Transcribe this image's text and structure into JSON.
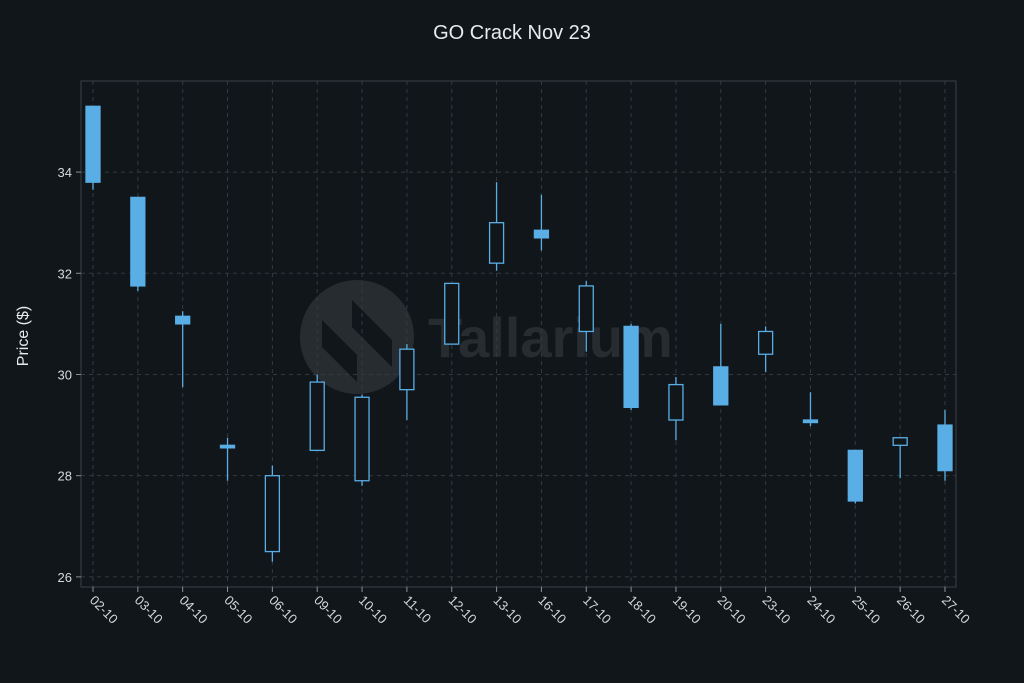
{
  "chart_data": {
    "type": "candlestick",
    "title": "GO Crack Nov 23",
    "xlabel": "",
    "ylabel": "Price ($)",
    "ylim": [
      25.8,
      35.8
    ],
    "yticks": [
      26,
      28,
      30,
      32,
      34
    ],
    "grid": true,
    "colors": {
      "up": "#5aaee6",
      "down": "#5aaee6",
      "background": "#10161a",
      "grid": "#33393e"
    },
    "watermark": "Tallarium",
    "categories": [
      "02-10",
      "03-10",
      "04-10",
      "05-10",
      "06-10",
      "09-10",
      "10-10",
      "11-10",
      "12-10",
      "13-10",
      "16-10",
      "17-10",
      "18-10",
      "19-10",
      "20-10",
      "23-10",
      "24-10",
      "25-10",
      "26-10",
      "27-10"
    ],
    "candles": [
      {
        "x": "02-10",
        "open": 35.3,
        "high": 35.3,
        "low": 33.65,
        "close": 33.8
      },
      {
        "x": "03-10",
        "open": 33.5,
        "high": 33.5,
        "low": 31.65,
        "close": 31.75
      },
      {
        "x": "04-10",
        "open": 31.15,
        "high": 31.25,
        "low": 29.75,
        "close": 31.0
      },
      {
        "x": "05-10",
        "open": 28.6,
        "high": 28.75,
        "low": 27.9,
        "close": 28.55
      },
      {
        "x": "06-10",
        "open": 26.5,
        "high": 28.2,
        "low": 26.3,
        "close": 28.0
      },
      {
        "x": "09-10",
        "open": 28.5,
        "high": 30.0,
        "low": 28.5,
        "close": 29.85
      },
      {
        "x": "10-10",
        "open": 27.9,
        "high": 29.6,
        "low": 27.8,
        "close": 29.55
      },
      {
        "x": "11-10",
        "open": 29.7,
        "high": 30.6,
        "low": 29.1,
        "close": 30.5
      },
      {
        "x": "12-10",
        "open": 30.6,
        "high": 31.8,
        "low": 30.6,
        "close": 31.8
      },
      {
        "x": "13-10",
        "open": 32.2,
        "high": 33.8,
        "low": 32.05,
        "close": 33.0
      },
      {
        "x": "16-10",
        "open": 32.85,
        "high": 33.55,
        "low": 32.45,
        "close": 32.7
      },
      {
        "x": "17-10",
        "open": 30.85,
        "high": 31.85,
        "low": 30.45,
        "close": 31.75
      },
      {
        "x": "18-10",
        "open": 30.95,
        "high": 31.0,
        "low": 29.3,
        "close": 29.35
      },
      {
        "x": "19-10",
        "open": 29.1,
        "high": 29.95,
        "low": 28.7,
        "close": 29.8
      },
      {
        "x": "20-10",
        "open": 30.15,
        "high": 31.0,
        "low": 29.4,
        "close": 29.4
      },
      {
        "x": "23-10",
        "open": 30.4,
        "high": 30.95,
        "low": 30.05,
        "close": 30.85
      },
      {
        "x": "24-10",
        "open": 29.1,
        "high": 29.65,
        "low": 28.98,
        "close": 29.05
      },
      {
        "x": "25-10",
        "open": 28.5,
        "high": 28.5,
        "low": 27.45,
        "close": 27.5
      },
      {
        "x": "26-10",
        "open": 28.6,
        "high": 28.75,
        "low": 27.95,
        "close": 28.75
      },
      {
        "x": "27-10",
        "open": 29.0,
        "high": 29.3,
        "low": 27.9,
        "close": 28.1
      }
    ]
  }
}
